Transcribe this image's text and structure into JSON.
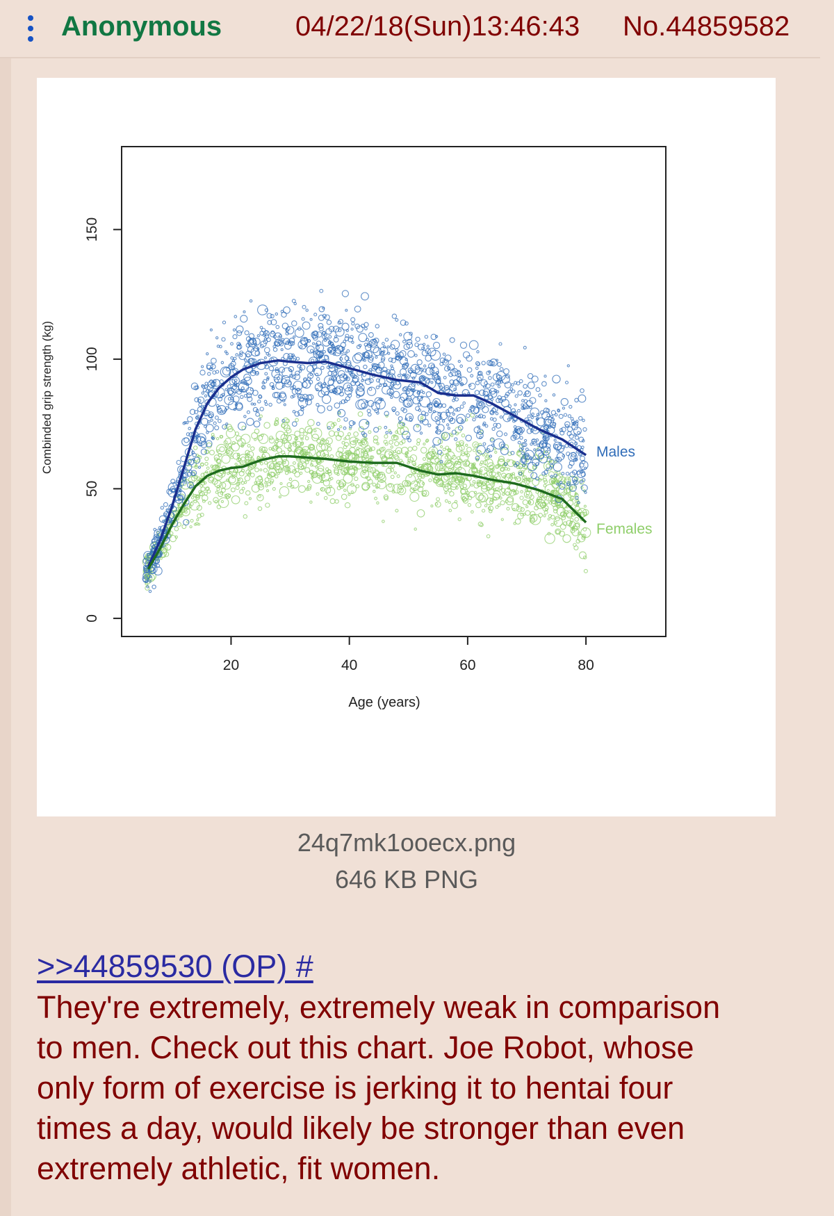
{
  "post": {
    "name": "Anonymous",
    "date": "04/22/18(Sun)13:46:43",
    "number": "No.44859582",
    "file_name": "24q7mk1ooecx.png",
    "file_meta": "646 KB PNG",
    "quote_link": ">>44859530 (OP) #",
    "body_lines": [
      "They're extremely, extremely weak in comparison",
      "to men. Check out this chart. Joe Robot, whose",
      "only form of exercise is jerking it to hentai four",
      "times a day, would likely be stronger than even",
      "extremely athletic, fit women."
    ]
  },
  "colors": {
    "name": "#117743",
    "text": "#800000",
    "link": "#2a2aa2",
    "background": "#f0e0d6",
    "males": "#2f6cb8",
    "males_line": "#1a2f8e",
    "females": "#8fce6a",
    "females_line": "#1e6b1e"
  },
  "chart_data": {
    "type": "scatter",
    "xlabel": "Age (years)",
    "ylabel": "Combinded grip strength (kg)",
    "x_ticks": [
      20,
      40,
      60,
      80
    ],
    "y_ticks": [
      0,
      50,
      100,
      150
    ],
    "xlim": [
      1.5,
      93.5
    ],
    "ylim": [
      -7,
      182
    ],
    "grid": false,
    "legend": "inline labels at right end of curves",
    "series": [
      {
        "name": "Males",
        "smooth_x": [
          6,
          8,
          10,
          12,
          14,
          16,
          18,
          20,
          22,
          25,
          28,
          30,
          33,
          36,
          40,
          44,
          48,
          52,
          55,
          58,
          61,
          64,
          68,
          72,
          76,
          80
        ],
        "smooth_y": [
          20,
          30,
          43,
          58,
          73,
          83,
          89,
          93,
          96,
          98.5,
          99.5,
          99,
          98.5,
          99,
          96.5,
          94,
          92,
          91,
          87,
          86,
          86,
          83,
          78,
          73,
          69,
          63
        ],
        "scatter_center": [
          20,
          30,
          43,
          58,
          73,
          83,
          89,
          93,
          96,
          98.5,
          99.5,
          99,
          98.5,
          99,
          96.5,
          94,
          92,
          91,
          87,
          86,
          86,
          83,
          78,
          73,
          69,
          63
        ],
        "scatter_spread": 15
      },
      {
        "name": "Females",
        "smooth_x": [
          6,
          8,
          10,
          12,
          14,
          16,
          18,
          20,
          22,
          25,
          28,
          30,
          33,
          36,
          40,
          44,
          48,
          52,
          55,
          58,
          61,
          64,
          68,
          72,
          76,
          80
        ],
        "smooth_y": [
          19,
          27,
          36,
          44,
          51,
          55,
          57,
          58,
          58.5,
          61,
          62.5,
          62.5,
          62,
          61.5,
          60.5,
          60,
          60,
          57,
          55.5,
          56,
          55,
          53.5,
          52,
          49.5,
          46,
          37
        ],
        "scatter_center": [
          19,
          27,
          36,
          44,
          51,
          55,
          57,
          58,
          58.5,
          61,
          62.5,
          62.5,
          62,
          61.5,
          60.5,
          60,
          60,
          57,
          55.5,
          56,
          55,
          53.5,
          52,
          49.5,
          46,
          37
        ],
        "scatter_spread": 11
      }
    ]
  }
}
